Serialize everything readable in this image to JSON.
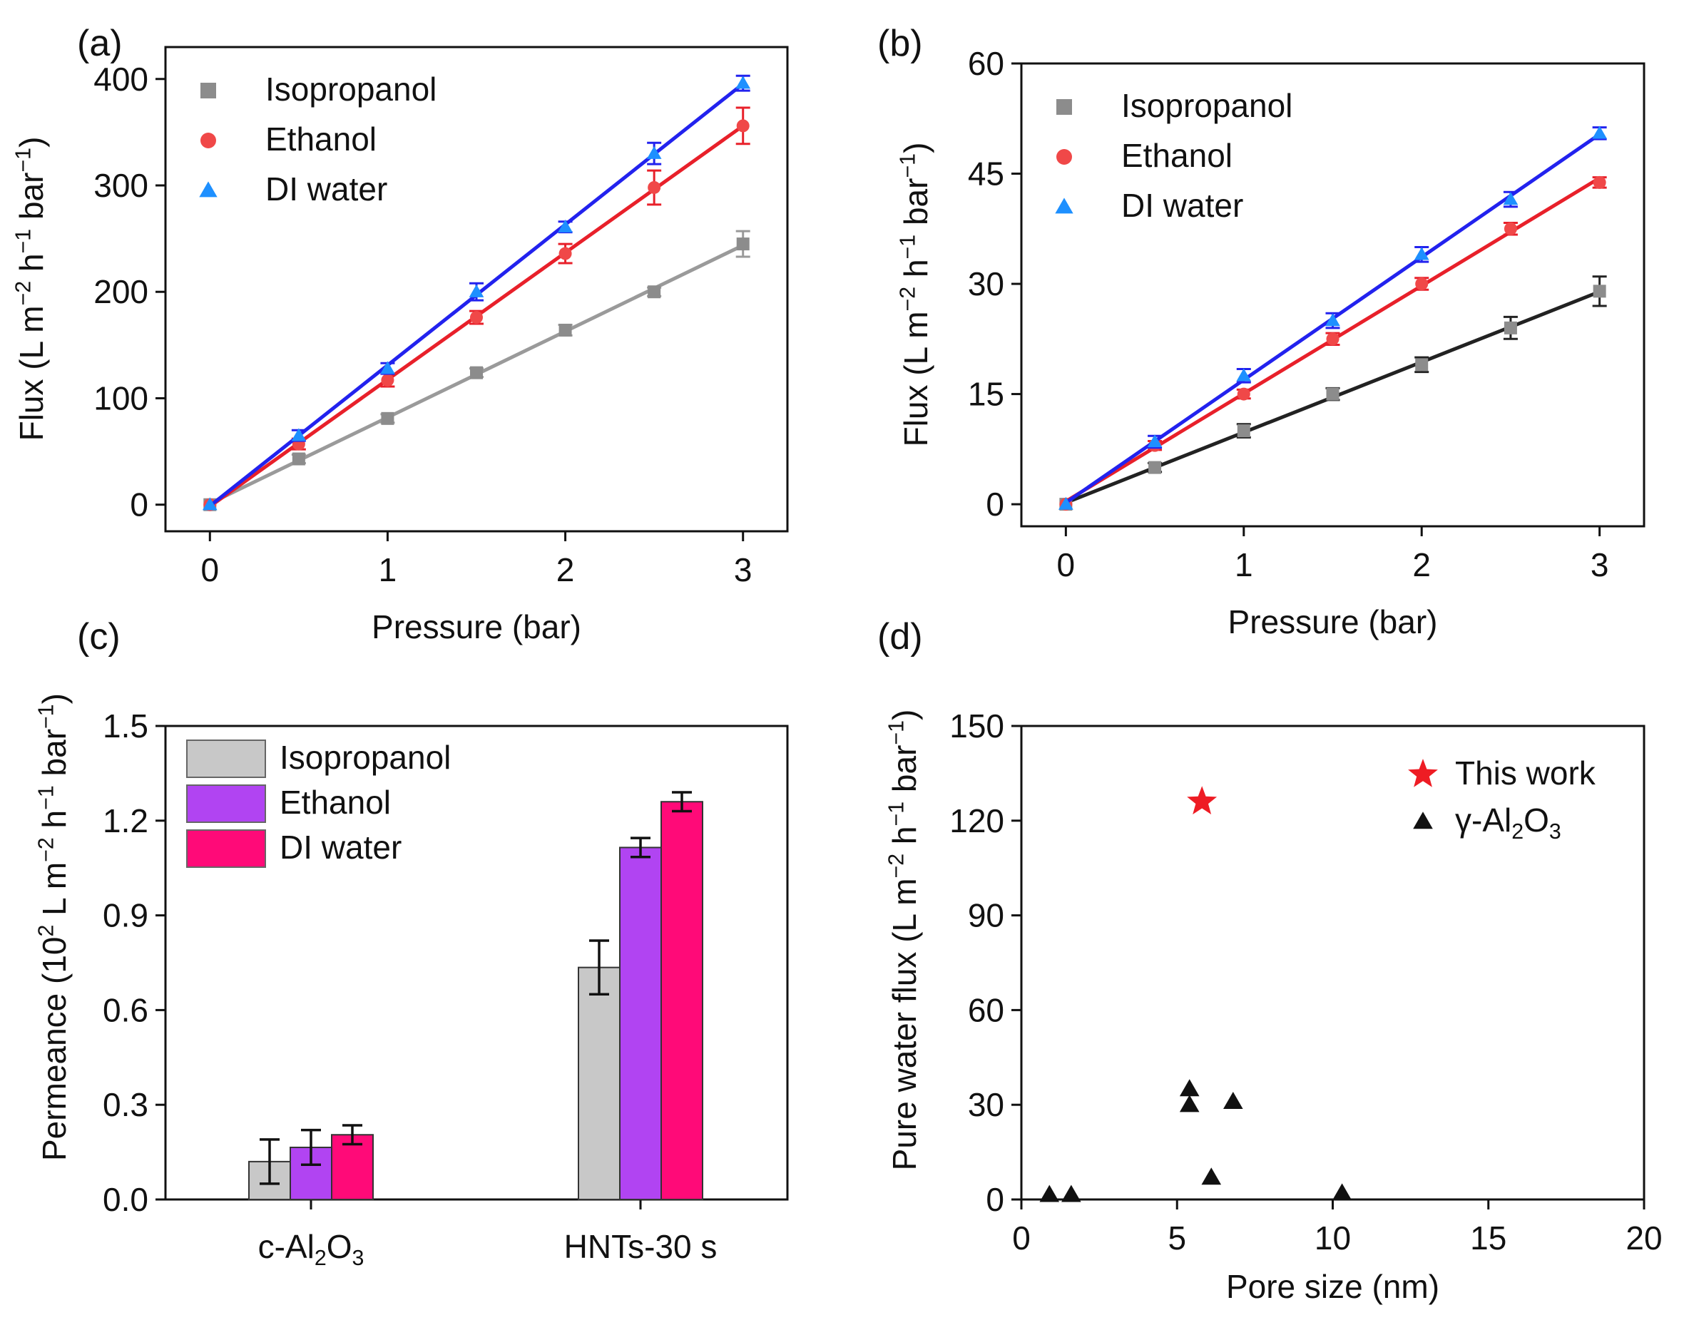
{
  "chart_data": [
    {
      "panel": "(a)",
      "type": "line",
      "xlabel": "Pressure (bar)",
      "ylabel": "Flux",
      "ylabel_unit": "(L m⁻² h⁻¹ bar⁻¹)",
      "xlim": [
        -0.25,
        3.25
      ],
      "ylim": [
        -25,
        430
      ],
      "xticks": [
        0,
        1,
        2,
        3
      ],
      "yticks": [
        0,
        100,
        200,
        300,
        400
      ],
      "x": [
        0,
        0.5,
        1,
        1.5,
        2,
        2.5,
        3
      ],
      "legend_position": "top-left",
      "series": [
        {
          "name": "Isopropanol",
          "marker": "square",
          "color": "#8c8c8c",
          "line_color": "#9a9a9a",
          "values": [
            0,
            43,
            81,
            124,
            164,
            200,
            245
          ],
          "errors": [
            0,
            4,
            4,
            4,
            5,
            4,
            12
          ]
        },
        {
          "name": "Ethanol",
          "marker": "circle",
          "color": "#f04848",
          "line_color": "#e8202a",
          "values": [
            0,
            57,
            117,
            176,
            236,
            298,
            356
          ],
          "errors": [
            0,
            5,
            6,
            6,
            9,
            16,
            17
          ]
        },
        {
          "name": "DI water",
          "marker": "triangle",
          "color": "#1e90ff",
          "line_color": "#2222ee",
          "values": [
            0,
            65,
            128,
            200,
            261,
            330,
            396
          ],
          "errors": [
            0,
            5,
            5,
            8,
            5,
            10,
            7
          ]
        }
      ]
    },
    {
      "panel": "(b)",
      "type": "line",
      "xlabel": "Pressure (bar)",
      "ylabel": "Flux",
      "ylabel_unit": "(L m⁻² h⁻¹ bar⁻¹)",
      "xlim": [
        -0.25,
        3.25
      ],
      "ylim": [
        -3,
        60
      ],
      "xticks": [
        0,
        1,
        2,
        3
      ],
      "yticks": [
        0,
        15,
        30,
        45,
        60
      ],
      "x": [
        0,
        0.5,
        1,
        1.5,
        2,
        2.5,
        3
      ],
      "legend_position": "top-left",
      "series": [
        {
          "name": "Isopropanol",
          "marker": "square",
          "color": "#8c8c8c",
          "line_color": "#222222",
          "values": [
            0,
            5,
            10,
            15,
            19,
            24,
            29
          ],
          "errors": [
            0,
            0.6,
            0.9,
            0.8,
            1.0,
            1.5,
            2.0
          ]
        },
        {
          "name": "Ethanol",
          "marker": "circle",
          "color": "#f04848",
          "line_color": "#e8202a",
          "values": [
            0,
            8,
            15,
            22.5,
            30,
            37.5,
            43.8
          ],
          "errors": [
            0,
            0.6,
            0.6,
            0.8,
            0.8,
            0.8,
            0.7
          ]
        },
        {
          "name": "DI water",
          "marker": "triangle",
          "color": "#1e90ff",
          "line_color": "#2222ee",
          "values": [
            0,
            8.5,
            17.5,
            25,
            34,
            41.5,
            50.5
          ],
          "errors": [
            0,
            0.8,
            0.9,
            1.0,
            1.0,
            1.0,
            0.8
          ]
        }
      ]
    },
    {
      "panel": "(c)",
      "type": "bar",
      "categories": [
        "c-Al₂O₃",
        "HNTs-30 s"
      ],
      "ylabel": "Permeance",
      "ylabel_unit": "(10² L m⁻² h⁻¹ bar⁻¹)",
      "ylim": [
        0,
        1.5
      ],
      "yticks": [
        "0.0",
        "0.3",
        "0.6",
        "0.9",
        "1.2",
        "1.5"
      ],
      "legend_position": "top-left",
      "series": [
        {
          "name": "Isopropanol",
          "color": "#c8c8c8",
          "values": [
            0.12,
            0.735
          ],
          "errors": [
            0.07,
            0.085
          ]
        },
        {
          "name": "Ethanol",
          "color": "#b144f2",
          "values": [
            0.165,
            1.115
          ],
          "errors": [
            0.055,
            0.03
          ]
        },
        {
          "name": "DI water",
          "color": "#ff0a78",
          "values": [
            0.205,
            1.26
          ],
          "errors": [
            0.03,
            0.03
          ]
        }
      ]
    },
    {
      "panel": "(d)",
      "type": "scatter",
      "xlabel": "Pore size (nm)",
      "ylabel": "Pure water flux",
      "ylabel_unit": "(L m⁻² h⁻¹ bar⁻¹)",
      "xlim": [
        0,
        20
      ],
      "ylim": [
        0,
        150
      ],
      "xticks": [
        0,
        5,
        10,
        15,
        20
      ],
      "yticks": [
        0,
        30,
        60,
        90,
        120,
        150
      ],
      "legend_position": "top-right",
      "series": [
        {
          "name": "This work",
          "marker": "star",
          "color": "#ee1c24",
          "points": [
            [
              5.8,
              126
            ]
          ]
        },
        {
          "name": "γ-Al₂O₃",
          "marker": "triangle",
          "color": "#111111",
          "points": [
            [
              0.9,
              1.5
            ],
            [
              1.6,
              1.5
            ],
            [
              5.4,
              35
            ],
            [
              5.4,
              30
            ],
            [
              6.8,
              31
            ],
            [
              6.1,
              7
            ],
            [
              10.3,
              2
            ]
          ]
        }
      ]
    }
  ]
}
